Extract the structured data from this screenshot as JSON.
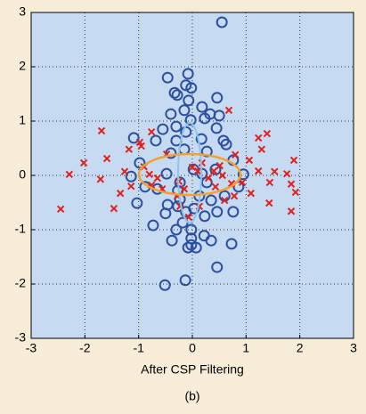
{
  "chart_data": {
    "type": "scatter",
    "xlabel": "After CSP Filtering",
    "caption": "(b)",
    "xlim": [
      -3,
      3
    ],
    "ylim": [
      -3,
      3
    ],
    "xticks": [
      -3,
      -2,
      -1,
      0,
      1,
      2,
      3
    ],
    "yticks": [
      -3,
      -2,
      -1,
      0,
      1,
      2,
      3
    ],
    "grid": true,
    "series": [
      {
        "marker": "o",
        "color": "#2d4fa0",
        "x": [
          0.55,
          -0.46,
          -0.08,
          -0.12,
          -0.02,
          -0.33,
          -0.28,
          0.46,
          -0.07,
          0.18,
          -0.15,
          0.33,
          0.5,
          -0.4,
          -0.03,
          0.23,
          -0.3,
          -0.55,
          -0.12,
          0.45,
          -0.68,
          -1.09,
          -0.3,
          0.17,
          0.58,
          0.63,
          0.27,
          -0.15,
          -0.4,
          0.76,
          -0.98,
          0.95,
          -1.14,
          -0.88,
          -0.65,
          -0.27,
          0.86,
          0.13,
          -0.23,
          -0.46,
          -1.03,
          0.35,
          0.6,
          0.03,
          -0.27,
          0.46,
          0.76,
          -0.12,
          -0.5,
          0.23,
          -0.73,
          -0.18,
          -0.3,
          -0.02,
          0.22,
          -0.02,
          -0.38,
          0.35,
          0.73,
          -0.02,
          0.07,
          -0.08,
          0.46,
          -0.51,
          -0.13,
          0.02,
          0.18,
          0.27,
          -0.23,
          0.43,
          -0.48
        ],
        "y": [
          2.82,
          1.8,
          1.87,
          1.66,
          1.61,
          1.52,
          1.48,
          1.43,
          1.38,
          1.26,
          1.2,
          1.13,
          1.1,
          1.13,
          1.02,
          1.05,
          0.9,
          0.85,
          0.8,
          0.87,
          0.64,
          0.69,
          0.64,
          0.67,
          0.64,
          0.57,
          0.44,
          0.48,
          0.41,
          0.28,
          0.23,
          0.02,
          -0.02,
          -0.21,
          -0.25,
          -0.28,
          -0.21,
          -0.38,
          -0.44,
          -0.54,
          -0.51,
          -0.46,
          -0.38,
          -0.61,
          -0.57,
          -0.67,
          -0.67,
          -0.67,
          -0.7,
          -0.75,
          -0.92,
          -0.87,
          -1.0,
          -1.0,
          -1.11,
          -1.16,
          -1.2,
          -1.2,
          -1.26,
          -1.28,
          -1.33,
          -1.33,
          -1.69,
          -2.02,
          -1.93,
          0.11,
          0.03,
          -0.13,
          -0.13,
          0.11,
          0.03
        ]
      },
      {
        "marker": "x",
        "color": "#e0211c",
        "x": [
          -2.45,
          -2.29,
          -2.02,
          -1.69,
          -1.59,
          -1.71,
          -1.46,
          -1.34,
          -1.26,
          -1.18,
          -0.98,
          -0.95,
          -0.76,
          -1.14,
          -0.9,
          -0.8,
          -0.76,
          -0.65,
          -0.48,
          -0.56,
          -0.28,
          -0.07,
          0.0,
          0.1,
          0.18,
          0.3,
          0.4,
          0.43,
          0.51,
          0.56,
          0.68,
          0.73,
          0.78,
          0.8,
          0.93,
          1.06,
          1.09,
          1.23,
          1.29,
          1.39,
          1.23,
          1.44,
          1.43,
          1.76,
          1.84,
          1.89,
          1.92,
          1.84,
          1.53,
          -0.23,
          0.13,
          0.6,
          -0.25,
          -0.15
        ],
        "y": [
          -0.62,
          0.02,
          0.23,
          0.82,
          0.31,
          -0.07,
          -0.61,
          -0.33,
          0.07,
          0.48,
          0.61,
          0.54,
          0.8,
          -0.2,
          0.16,
          0.02,
          -0.18,
          -0.05,
          0.39,
          -0.25,
          -0.38,
          -0.77,
          0.15,
          0.08,
          0.23,
          -0.05,
          0.08,
          -0.21,
          0.18,
          0.0,
          1.2,
          -0.15,
          -0.38,
          0.38,
          -0.13,
          0.28,
          -0.33,
          0.69,
          0.48,
          0.77,
          0.08,
          -0.13,
          -0.51,
          0.03,
          -0.16,
          0.28,
          -0.31,
          -0.66,
          0.07,
          -0.57,
          -0.57,
          -0.46,
          -0.11,
          -0.25
        ]
      }
    ]
  }
}
